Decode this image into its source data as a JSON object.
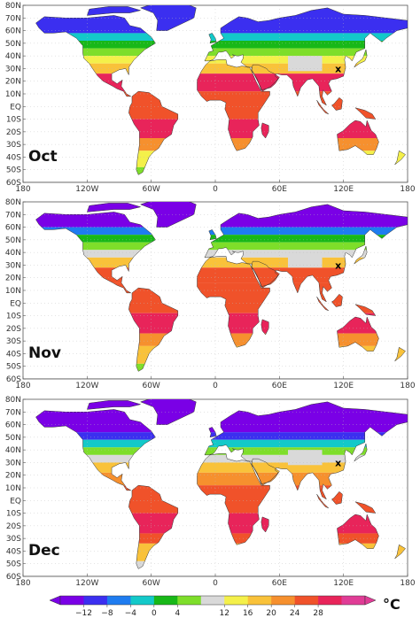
{
  "panels": [
    {
      "month": "Oct",
      "season": 0
    },
    {
      "month": "Nov",
      "season": 1
    },
    {
      "month": "Dec",
      "season": 2
    }
  ],
  "lat_labels": [
    "80N",
    "70N",
    "60N",
    "50N",
    "40N",
    "30N",
    "20N",
    "10N",
    "EQ",
    "10S",
    "20S",
    "30S",
    "40S",
    "50S",
    "60S"
  ],
  "lon_labels": [
    "180",
    "120W",
    "60W",
    "0",
    "60E",
    "120E",
    "180"
  ],
  "marker": {
    "symbol": "x",
    "lon": 115,
    "lat": 30
  },
  "colorbar": {
    "unit": "°C",
    "labels": [
      "−12",
      "−8",
      "−4",
      "0",
      "4",
      "12",
      "16",
      "20",
      "24",
      "28"
    ],
    "colors": [
      "#7a00e6",
      "#3b2ff0",
      "#1e7cf0",
      "#13c9c9",
      "#18b818",
      "#7ede2a",
      "#d9d9d9",
      "#f4f04a",
      "#f9c23a",
      "#f6902e",
      "#f0522a",
      "#e8245a",
      "#e03c96"
    ]
  }
}
